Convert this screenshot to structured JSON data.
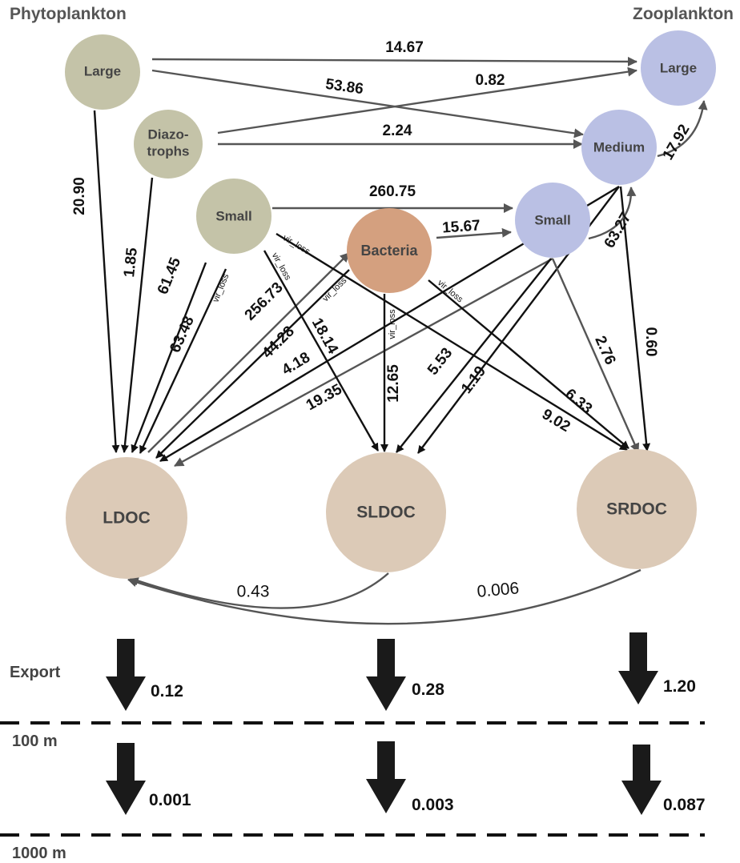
{
  "headers": {
    "phytoplankton": "Phytoplankton",
    "zooplankton": "Zooplankton"
  },
  "colors": {
    "phyto": "#c4c3a8",
    "zoo": "#bac0e4",
    "bacteria": "#d4a07f",
    "doc": "#dccab7",
    "line_dark": "#111111",
    "line_gray": "#555555"
  },
  "nodes": {
    "phyto_large": "Large",
    "diazotrophs_1": "Diazo-",
    "diazotrophs_2": "trophs",
    "phyto_small": "Small",
    "bacteria": "Bacteria",
    "zoo_small": "Small",
    "zoo_medium": "Medium",
    "zoo_large": "Large",
    "ldoc": "LDOC",
    "sldoc": "SLDOC",
    "srdoc": "SRDOC"
  },
  "fluxes": {
    "phyto_large_to_zoo_large": "14.67",
    "phyto_large_to_zoo_medium": "53.86",
    "diazo_to_zoo_large": "0.82",
    "diazo_to_zoo_medium": "2.24",
    "phyto_large_to_ldoc": "20.90",
    "diazo_to_ldoc": "1.85",
    "phyto_small_to_zoo_small": "260.75",
    "bacteria_to_zoo_small": "15.67",
    "phyto_small_to_ldoc": "61.45",
    "phyto_small_vir_to_ldoc": "63.48",
    "ldoc_to_bacteria": "256.73",
    "bacteria_vir_to_ldoc": "44.28",
    "zoo_medium_to_ldoc": "4.18",
    "zoo_small_to_ldoc": "19.35",
    "phyto_small_vir_to_sldoc": "18.14",
    "bacteria_vir_to_sldoc": "12.65",
    "zoo_small_to_sldoc": "5.53",
    "zoo_medium_to_sldoc": "1.19",
    "zoo_small_to_srdoc": "2.76",
    "zoo_medium_to_srdoc": "0.60",
    "bacteria_vir_to_srdoc": "6.33",
    "phyto_small_vir_to_srdoc": "9.02",
    "zoo_small_to_zoo_medium": "63.27",
    "zoo_medium_to_zoo_large": "17.92",
    "sldoc_to_ldoc": "0.43",
    "srdoc_to_ldoc": "0.006"
  },
  "vir_loss_label": "vir_loss",
  "export": {
    "label": "Export",
    "depth_100": "100 m",
    "depth_1000": "1000 m",
    "ldoc_100": "0.12",
    "sldoc_100": "0.28",
    "srdoc_100": "1.20",
    "ldoc_1000": "0.001",
    "sldoc_1000": "0.003",
    "srdoc_1000": "0.087"
  }
}
